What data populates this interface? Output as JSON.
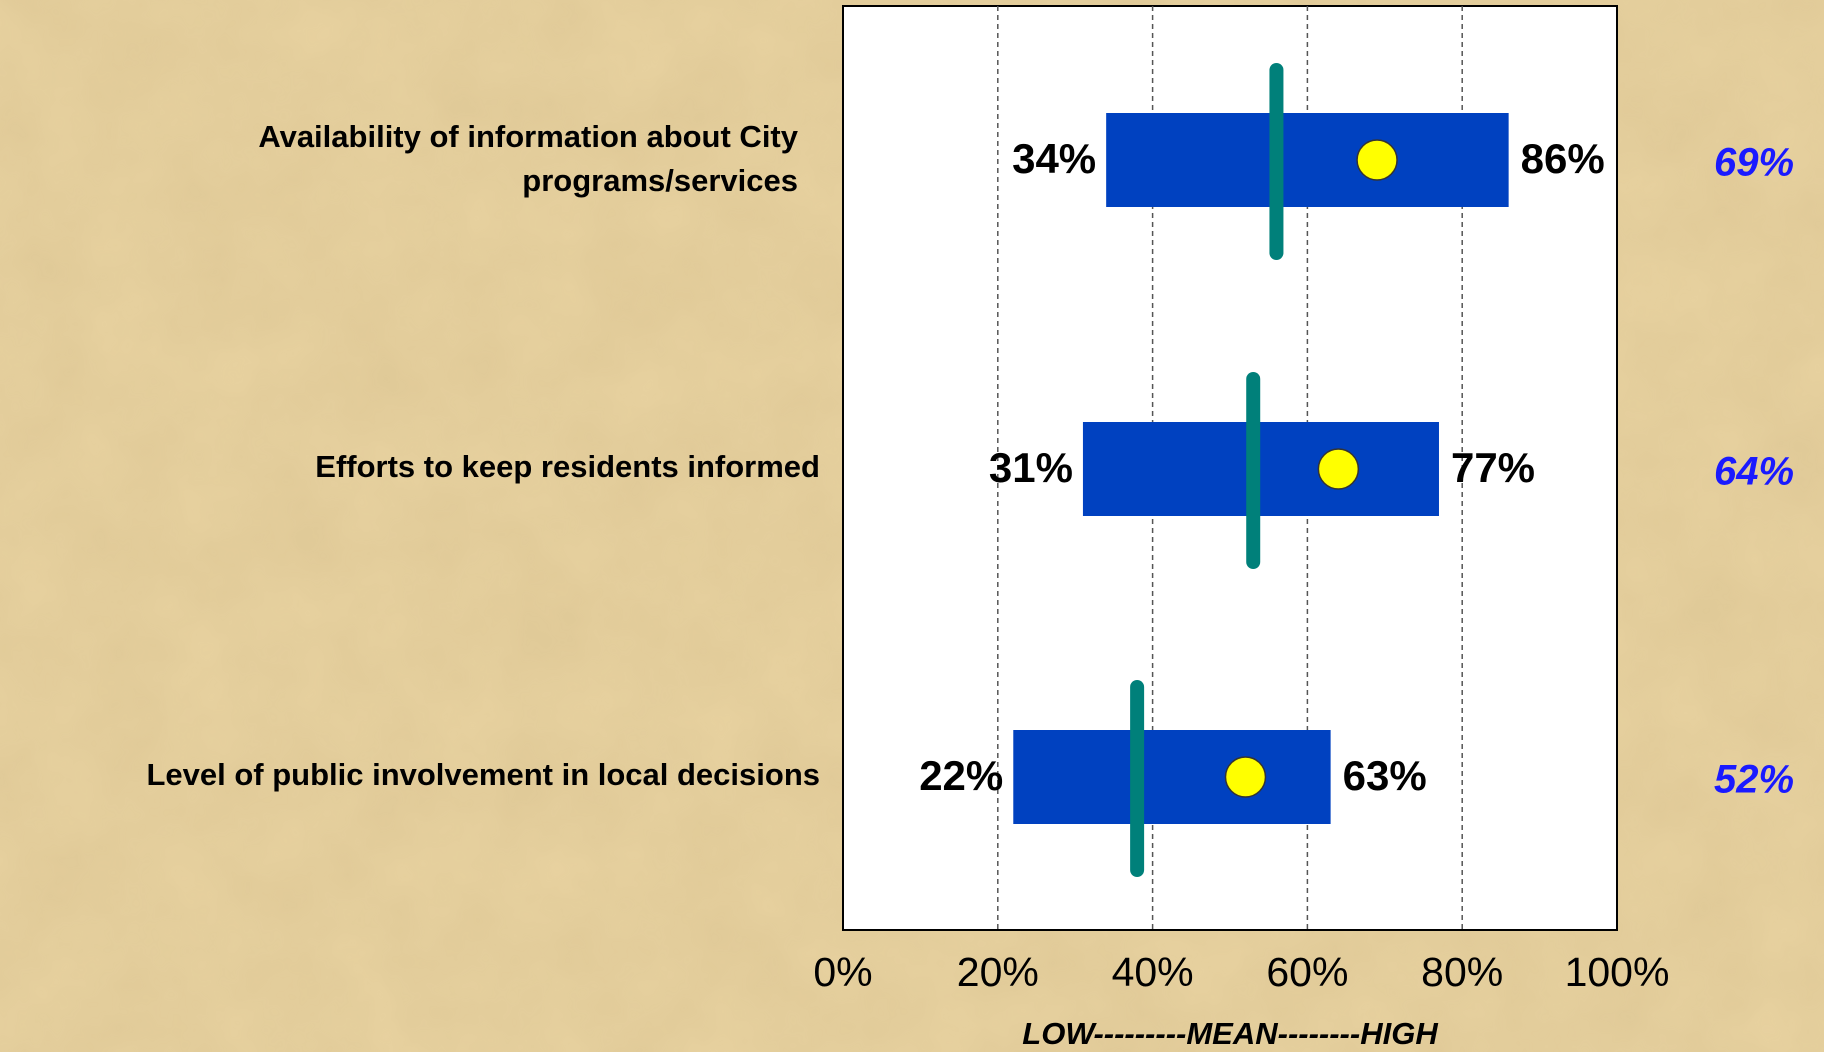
{
  "chart_data": {
    "type": "range",
    "categories": [
      [
        "Availability of information about City",
        "programs/services"
      ],
      "Efforts to keep residents informed",
      "Level of public involvement in local decisions"
    ],
    "low": [
      34,
      31,
      22
    ],
    "low_labels": [
      "34%",
      "31%",
      "22%"
    ],
    "high": [
      86,
      77,
      63
    ],
    "high_labels": [
      "86%",
      "77%",
      "63%"
    ],
    "mean": [
      56,
      53,
      38
    ],
    "score": [
      69,
      64,
      52
    ],
    "score_labels": [
      "69%",
      "64%",
      "52%"
    ],
    "bar_color": "#0041c0",
    "mean_color": "#00807a",
    "dot_color": "#ffff00",
    "score_label_color": "#1a1aff",
    "xlim": [
      0,
      100
    ],
    "xticks": [
      {
        "value": 0,
        "label": "0%"
      },
      {
        "value": 20,
        "label": "20%"
      },
      {
        "value": 40,
        "label": "40%"
      },
      {
        "value": 60,
        "label": "60%"
      },
      {
        "value": 80,
        "label": "80%"
      },
      {
        "value": 100,
        "label": "100%"
      }
    ],
    "grid": true,
    "x_label": "LOW---------MEAN--------HIGH"
  }
}
